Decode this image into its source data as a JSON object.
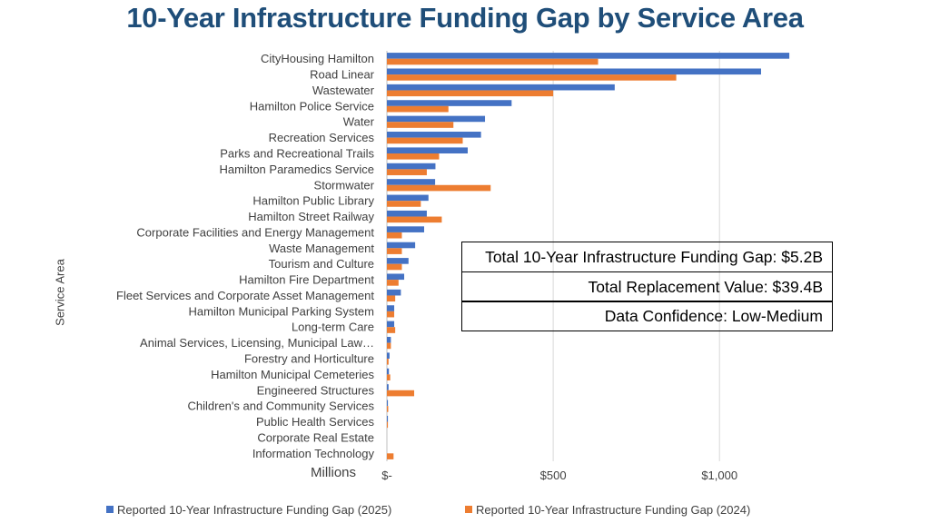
{
  "title": "10-Year Infrastructure Funding Gap by Service Area",
  "chart_data": {
    "type": "bar",
    "orientation": "horizontal",
    "title": "10-Year Infrastructure Funding Gap by Service Area",
    "ylabel": "Service Area",
    "units_label": "Millions",
    "categories": [
      "CityHousing Hamilton",
      "Road Linear",
      "Wastewater",
      "Hamilton Police Service",
      "Water",
      "Recreation Services",
      "Parks and Recreational Trails",
      "Hamilton Paramedics Service",
      "Stormwater",
      "Hamilton Public Library",
      "Hamilton Street Railway",
      "Corporate Facilities and Energy Management",
      "Waste Management",
      "Tourism and Culture",
      "Hamilton Fire Department",
      "Fleet Services and Corporate Asset Management",
      "Hamilton Municipal Parking System",
      "Long-term Care",
      "Animal Services, Licensing, Municipal Law…",
      "Forestry and Horticulture",
      "Hamilton Municipal Cemeteries",
      "Engineered Structures",
      "Children's and Community Services",
      "Public Health Services",
      "Corporate Real Estate",
      "Information Technology"
    ],
    "series": [
      {
        "name": "Reported 10-Year Infrastructure Funding Gap (2025)",
        "color": "#4472c4",
        "values": [
          1210,
          1125,
          685,
          375,
          295,
          283,
          243,
          146,
          145,
          125,
          120,
          112,
          85,
          65,
          52,
          42,
          22,
          22,
          12,
          8,
          6,
          5,
          3,
          3,
          0,
          0
        ]
      },
      {
        "name": "Reported 10-Year Infrastructure Funding Gap (2024)",
        "color": "#ed7d31",
        "values": [
          635,
          870,
          500,
          185,
          200,
          228,
          157,
          120,
          312,
          102,
          165,
          45,
          45,
          45,
          35,
          25,
          22,
          25,
          12,
          5,
          10,
          82,
          4,
          3,
          0,
          20
        ]
      }
    ],
    "xticks": [
      {
        "value": 0,
        "label": "$-"
      },
      {
        "value": 500,
        "label": "$500"
      },
      {
        "value": 1000,
        "label": "$1,000"
      }
    ],
    "xlim": [
      0,
      1250
    ],
    "grid": "vertical",
    "legend_position": "bottom"
  },
  "infobox": {
    "rows": [
      "Total 10-Year Infrastructure Funding Gap: $5.2B",
      "Total Replacement Value: $39.4B",
      "Data Confidence: Low-Medium"
    ]
  }
}
